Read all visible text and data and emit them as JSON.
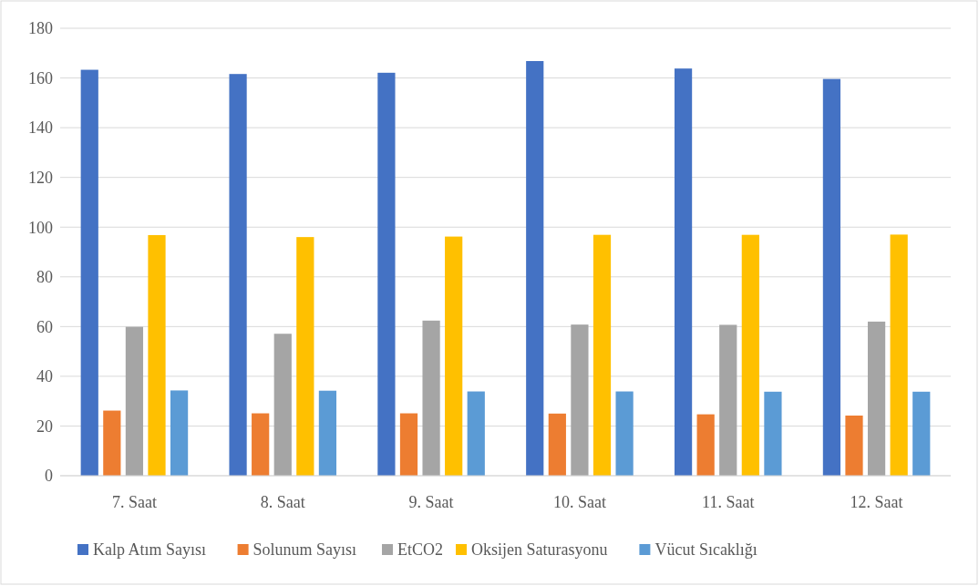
{
  "chart_data": {
    "type": "bar",
    "categories": [
      "7. Saat",
      "8. Saat",
      "9. Saat",
      "10. Saat",
      "11. Saat",
      "12. Saat"
    ],
    "series": [
      {
        "name": "Kalp Atım Sayısı",
        "color": "#4472c4",
        "values": [
          163.3,
          161.6,
          162.1,
          166.8,
          163.8,
          159.6
        ]
      },
      {
        "name": "Solunum Sayısı",
        "color": "#ed7d31",
        "values": [
          26.2,
          25.1,
          25.1,
          25.0,
          24.7,
          24.2
        ]
      },
      {
        "name": "EtCO2",
        "color": "#a5a5a5",
        "values": [
          59.9,
          57.1,
          62.4,
          60.8,
          60.7,
          62.0
        ]
      },
      {
        "name": "Oksijen Saturasyonu",
        "color": "#ffc000",
        "values": [
          96.8,
          96.0,
          96.2,
          96.9,
          96.9,
          97.0
        ]
      },
      {
        "name": "Vücut Sıcaklığı",
        "color": "#5b9bd5",
        "values": [
          34.3,
          34.2,
          33.9,
          33.9,
          33.8,
          33.8
        ]
      }
    ],
    "ylim": [
      0,
      180
    ],
    "yticks": [
      0,
      20,
      40,
      60,
      80,
      100,
      120,
      140,
      160,
      180
    ],
    "grid": "y",
    "legend": "bottom"
  }
}
